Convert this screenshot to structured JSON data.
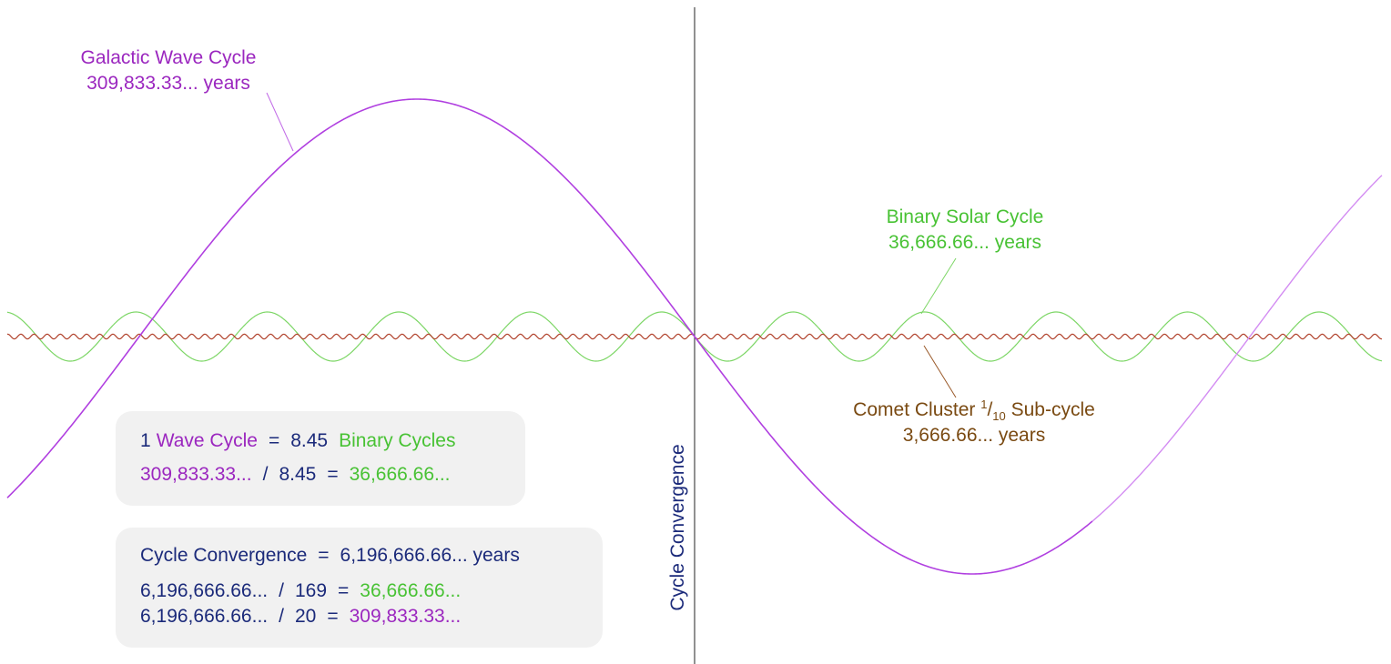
{
  "labels": {
    "galactic": {
      "title": "Galactic Wave Cycle",
      "period": "309,833.33... years"
    },
    "binary": {
      "title": "Binary Solar Cycle",
      "period": "36,666.66... years"
    },
    "comet": {
      "title_before": "Comet Cluster ",
      "fraction_num": "1",
      "fraction_slash": "/",
      "fraction_den": "10",
      "title_after": " Sub-cycle",
      "period": "3,666.66... years"
    },
    "convergence_axis": "Cycle Convergence"
  },
  "ratio_box": {
    "line1": {
      "count": "1",
      "wave_label": "Wave Cycle",
      "equals": "=",
      "value": "8.45",
      "binary_label": "Binary Cycles"
    },
    "line2": {
      "wave_years": "309,833.33...",
      "op": "/",
      "divisor": "8.45",
      "equals": "=",
      "binary_years": "36,666.66..."
    }
  },
  "convergence_box": {
    "line1": {
      "label": "Cycle Convergence",
      "equals": "=",
      "value": "6,196,666.66... years"
    },
    "line2": {
      "total": "6,196,666.66...",
      "op": "/",
      "divisor": "169",
      "equals": "=",
      "result": "36,666.66..."
    },
    "line3": {
      "total": "6,196,666.66...",
      "op": "/",
      "divisor": "20",
      "equals": "=",
      "result": "309,833.33..."
    }
  },
  "colors": {
    "galactic": "#b03fe0",
    "galactic_faded": "#d38cf2",
    "binary": "#7cd665",
    "comet": "#b0402a",
    "axis": "#222222",
    "text": "#1b2a7a"
  }
}
